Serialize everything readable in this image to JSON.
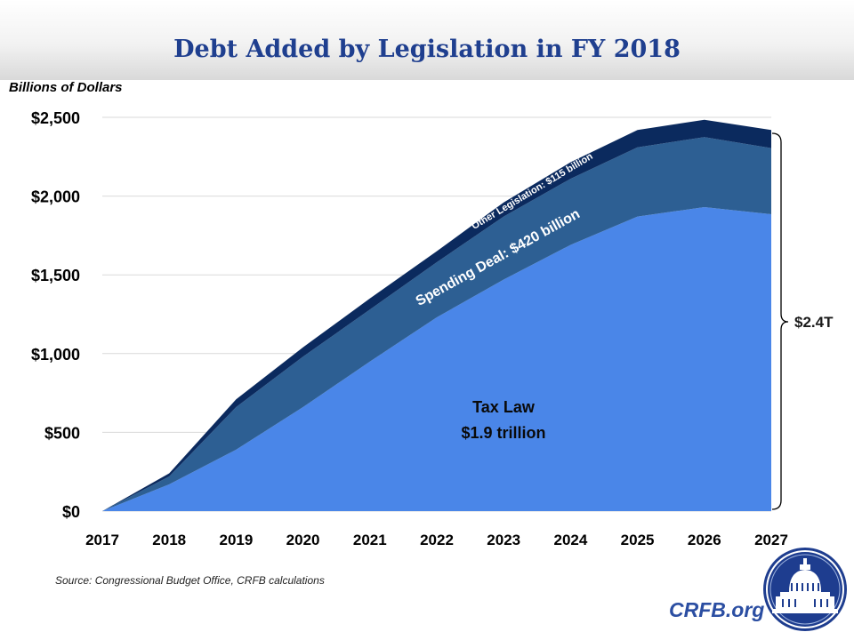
{
  "chart_data": {
    "type": "area",
    "title": "Debt Added by Legislation in FY 2018",
    "ylabel": "Billions of Dollars",
    "x": [
      2017,
      2018,
      2019,
      2020,
      2021,
      2022,
      2023,
      2024,
      2025,
      2026,
      2027
    ],
    "ylim": [
      0,
      2500
    ],
    "yticks": [
      "$0",
      "$500",
      "$1,000",
      "$1,500",
      "$2,000",
      "$2,500"
    ],
    "yticks_values": [
      0,
      500,
      1000,
      1500,
      2000,
      2500
    ],
    "grid": true,
    "stacked": true,
    "series": [
      {
        "name": "Tax Law",
        "color": "#4a86e8",
        "values": [
          0,
          170,
          390,
          660,
          950,
          1230,
          1470,
          1690,
          1870,
          1930,
          1885
        ]
      },
      {
        "name": "Spending Deal",
        "color": "#2d5f93",
        "values": [
          0,
          50,
          270,
          320,
          330,
          350,
          400,
          420,
          440,
          445,
          420
        ]
      },
      {
        "name": "Other Legislation",
        "color": "#0b2a5e",
        "values": [
          0,
          20,
          50,
          60,
          70,
          70,
          90,
          105,
          110,
          110,
          115
        ]
      }
    ],
    "annotations": {
      "tax_law_line1": "Tax Law",
      "tax_law_line2": "$1.9 trillion",
      "spending_deal": "Spending Deal: $420 billion",
      "other_legislation": "Other Legislation: $115 billion",
      "total": "$2.4T"
    }
  },
  "footer": {
    "source": "Source: Congressional Budget Office, CRFB calculations",
    "site": "CRFB.org"
  },
  "logo": {
    "icon": "capitol-dome-icon"
  }
}
